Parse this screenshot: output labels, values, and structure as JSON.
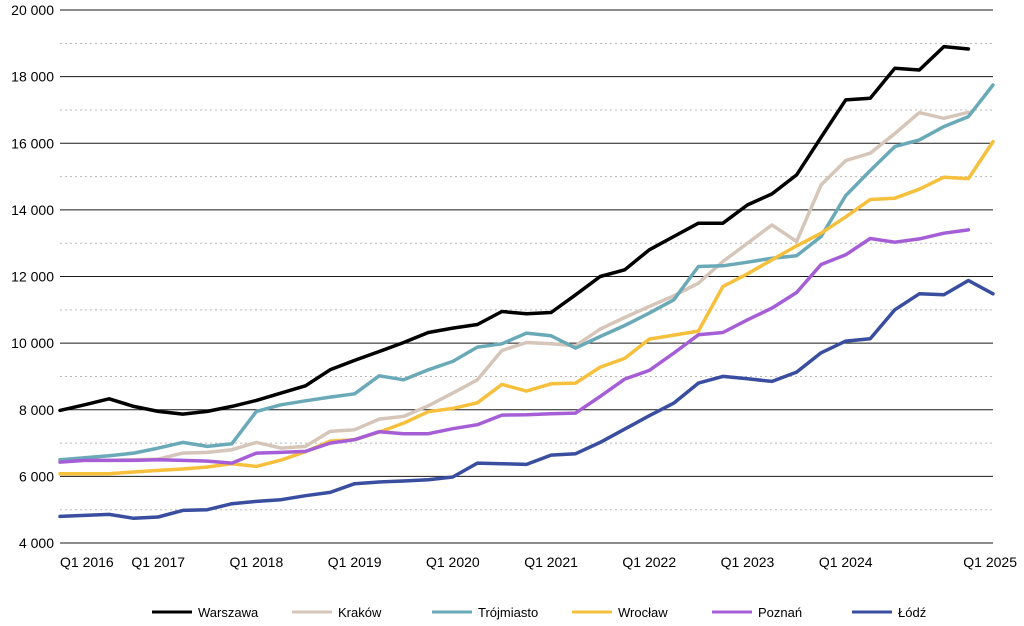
{
  "chart_data": {
    "type": "line",
    "title": "",
    "xlabel": "",
    "ylabel": "",
    "ylim": [
      4000,
      20000
    ],
    "y_ticks": [
      {
        "value": 4000,
        "label": "4 000"
      },
      {
        "value": 6000,
        "label": "6 000"
      },
      {
        "value": 8000,
        "label": "8 000"
      },
      {
        "value": 10000,
        "label": "10 000"
      },
      {
        "value": 12000,
        "label": "12 000"
      },
      {
        "value": 14000,
        "label": "14 000"
      },
      {
        "value": 16000,
        "label": "16 000"
      },
      {
        "value": 18000,
        "label": "18 000"
      },
      {
        "value": 20000,
        "label": "20 000"
      }
    ],
    "x_ticks": [
      {
        "index": 0,
        "label": "Q1 2016"
      },
      {
        "index": 4,
        "label": "Q1 2017"
      },
      {
        "index": 8,
        "label": "Q1 2018"
      },
      {
        "index": 12,
        "label": "Q1 2019"
      },
      {
        "index": 16,
        "label": "Q1 2020"
      },
      {
        "index": 20,
        "label": "Q1 2021"
      },
      {
        "index": 24,
        "label": "Q1 2022"
      },
      {
        "index": 28,
        "label": "Q1 2023"
      },
      {
        "index": 32,
        "label": "Q1 2024"
      },
      {
        "index": 36,
        "label": "Q1 2025"
      }
    ],
    "grid": true,
    "legend_position": "bottom",
    "series": [
      {
        "name": "Warszawa",
        "color": "#000000",
        "values": [
          7980,
          8150,
          8330,
          8100,
          7950,
          7870,
          7950,
          8100,
          8280,
          8500,
          8720,
          9200,
          9480,
          9750,
          10020,
          10320,
          10450,
          10560,
          10950,
          10880,
          10920,
          11450,
          12000,
          12200,
          12800,
          13200,
          13600,
          13600,
          14150,
          14480,
          15050,
          16180,
          17300,
          17350,
          18250,
          18200,
          18900,
          18830
        ]
      },
      {
        "name": "Kraków",
        "color": "#d6c6b9",
        "values": [
          6480,
          6480,
          6480,
          6500,
          6520,
          6700,
          6720,
          6800,
          7020,
          6850,
          6900,
          7350,
          7400,
          7720,
          7800,
          8120,
          8500,
          8900,
          9780,
          10020,
          9980,
          9920,
          10420,
          10770,
          11100,
          11420,
          11800,
          12450,
          13000,
          13550,
          13050,
          14750,
          15480,
          15700,
          16290,
          16920,
          16750,
          16930
        ]
      },
      {
        "name": "Trójmiasto",
        "color": "#6aaab8",
        "values": [
          6500,
          6560,
          6620,
          6700,
          6850,
          7020,
          6900,
          6980,
          7950,
          8150,
          8270,
          8380,
          8480,
          9020,
          8900,
          9200,
          9450,
          9880,
          9980,
          10300,
          10220,
          9850,
          10200,
          10530,
          10900,
          11300,
          12300,
          12320,
          12430,
          12550,
          12620,
          13200,
          14430,
          15180,
          15900,
          16100,
          16500,
          16800,
          17750
        ]
      },
      {
        "name": "Wrocław",
        "color": "#f6c03c",
        "values": [
          6080,
          6080,
          6080,
          6130,
          6180,
          6220,
          6280,
          6380,
          6300,
          6490,
          6740,
          7060,
          7100,
          7330,
          7600,
          7940,
          8040,
          8210,
          8760,
          8560,
          8780,
          8800,
          9280,
          9540,
          10120,
          10240,
          10360,
          11700,
          12080,
          12500,
          12920,
          13300,
          13790,
          14310,
          14350,
          14620,
          14980,
          14940,
          16050
        ]
      },
      {
        "name": "Poznań",
        "color": "#a55ed6",
        "values": [
          6430,
          6480,
          6480,
          6480,
          6500,
          6480,
          6460,
          6400,
          6700,
          6720,
          6750,
          7000,
          7100,
          7340,
          7280,
          7280,
          7430,
          7550,
          7840,
          7850,
          7880,
          7900,
          8400,
          8920,
          9180,
          9700,
          10250,
          10320,
          10700,
          11050,
          11520,
          12360,
          12650,
          13140,
          13030,
          13130,
          13300,
          13400
        ]
      },
      {
        "name": "Łódź",
        "color": "#3a4ea0",
        "values": [
          4800,
          4830,
          4860,
          4740,
          4780,
          4980,
          5000,
          5180,
          5250,
          5300,
          5420,
          5520,
          5780,
          5830,
          5860,
          5900,
          5980,
          6400,
          6380,
          6360,
          6640,
          6680,
          7020,
          7420,
          7820,
          8200,
          8800,
          9000,
          8930,
          8850,
          9130,
          9710,
          10060,
          10130,
          11000,
          11480,
          11450,
          11880,
          11480
        ]
      }
    ]
  }
}
